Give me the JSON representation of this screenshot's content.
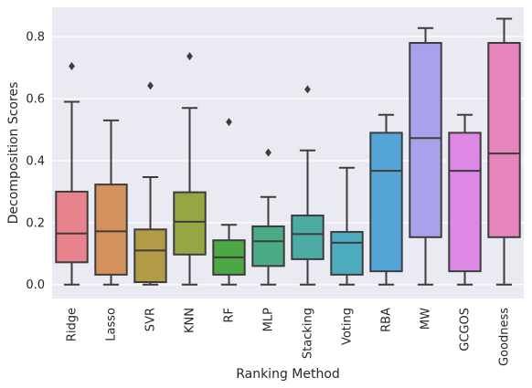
{
  "chart_data": {
    "type": "box",
    "xlabel": "Ranking Method",
    "ylabel": "Decomposition Scores",
    "ylim": [
      -0.045,
      0.895
    ],
    "yticks": [
      "0.0",
      "0.2",
      "0.4",
      "0.6",
      "0.8"
    ],
    "grid": true,
    "legend": "none",
    "colors": {
      "background": "#eaeaf2",
      "grid": "#ffffff",
      "edge": "#3d3d3d"
    },
    "categories": [
      {
        "label": "Ridge",
        "color": "#e8828c",
        "whislo": 0.0,
        "q1": 0.072,
        "med": 0.165,
        "q3": 0.3,
        "whishi": 0.59,
        "fliers": [
          0.705
        ]
      },
      {
        "label": "Lasso",
        "color": "#d3925a",
        "whislo": 0.0,
        "q1": 0.032,
        "med": 0.172,
        "q3": 0.323,
        "whishi": 0.53,
        "fliers": []
      },
      {
        "label": "SVR",
        "color": "#b19b47",
        "whislo": 0.0,
        "q1": 0.008,
        "med": 0.11,
        "q3": 0.178,
        "whishi": 0.347,
        "fliers": [
          0.642
        ]
      },
      {
        "label": "KNN",
        "color": "#95a643",
        "whislo": 0.0,
        "q1": 0.097,
        "med": 0.203,
        "q3": 0.298,
        "whishi": 0.57,
        "fliers": [
          0.737
        ]
      },
      {
        "label": "RF",
        "color": "#4ca745",
        "whislo": 0.0,
        "q1": 0.032,
        "med": 0.088,
        "q3": 0.143,
        "whishi": 0.193,
        "fliers": [
          0.525
        ]
      },
      {
        "label": "MLP",
        "color": "#4aab86",
        "whislo": 0.0,
        "q1": 0.06,
        "med": 0.14,
        "q3": 0.188,
        "whishi": 0.283,
        "fliers": [
          0.426
        ]
      },
      {
        "label": "Stacking",
        "color": "#4caca3",
        "whislo": 0.0,
        "q1": 0.082,
        "med": 0.163,
        "q3": 0.223,
        "whishi": 0.433,
        "fliers": [
          0.63
        ]
      },
      {
        "label": "Voting",
        "color": "#4dabbf",
        "whislo": 0.0,
        "q1": 0.032,
        "med": 0.135,
        "q3": 0.17,
        "whishi": 0.377,
        "fliers": []
      },
      {
        "label": "RBA",
        "color": "#56a5d9",
        "whislo": 0.0,
        "q1": 0.043,
        "med": 0.367,
        "q3": 0.49,
        "whishi": 0.548,
        "fliers": []
      },
      {
        "label": "MW",
        "color": "#a9a2eb",
        "whislo": 0.0,
        "q1": 0.153,
        "med": 0.473,
        "q3": 0.78,
        "whishi": 0.828,
        "fliers": []
      },
      {
        "label": "GCGOS",
        "color": "#dd88e5",
        "whislo": 0.0,
        "q1": 0.043,
        "med": 0.367,
        "q3": 0.49,
        "whishi": 0.548,
        "fliers": []
      },
      {
        "label": "Goodness",
        "color": "#e686bd",
        "whislo": 0.0,
        "q1": 0.153,
        "med": 0.423,
        "q3": 0.78,
        "whishi": 0.858,
        "fliers": []
      }
    ]
  }
}
